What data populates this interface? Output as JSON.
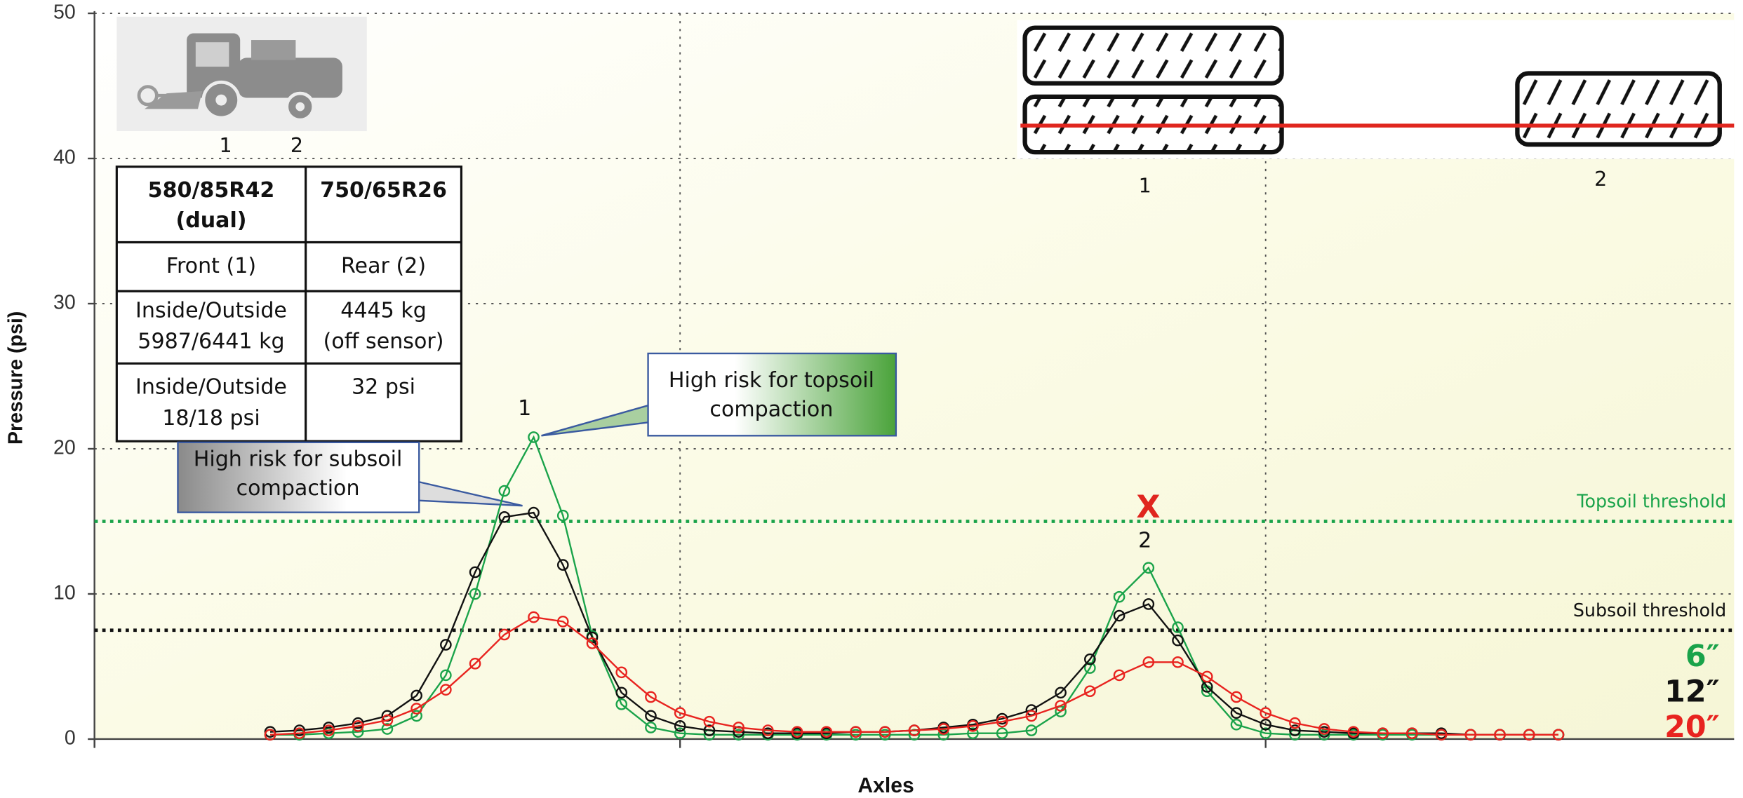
{
  "chart_data": {
    "type": "line",
    "xlabel": "Axles",
    "ylabel": "Pressure (psi)",
    "x": [
      3,
      3.5,
      4,
      4.5,
      5,
      5.5,
      6,
      6.5,
      7,
      7.5,
      8,
      8.5,
      9,
      9.5,
      10,
      10.5,
      11,
      11.5,
      12,
      12.5,
      13,
      13.5,
      14,
      14.5,
      15,
      15.5,
      16,
      16.5,
      17,
      17.5,
      18,
      18.5,
      19,
      19.5,
      20,
      20.5,
      21,
      21.5,
      22,
      22.5,
      23,
      23.5,
      24,
      24.5,
      25
    ],
    "xlim": [
      0,
      28
    ],
    "xticks": [
      0,
      10,
      20
    ],
    "ylim": [
      0,
      50
    ],
    "yticks": [
      0,
      10,
      20,
      30,
      40,
      50
    ],
    "grid": true,
    "legend": "lower right",
    "series": [
      {
        "name": "6″",
        "color": "#1aa34a",
        "values": [
          0.3,
          0.3,
          0.4,
          0.5,
          0.7,
          1.6,
          4.4,
          10.0,
          17.1,
          20.8,
          15.4,
          7.1,
          2.4,
          0.8,
          0.4,
          0.3,
          0.3,
          0.3,
          0.3,
          0.3,
          0.3,
          0.3,
          0.3,
          0.3,
          0.4,
          0.4,
          0.6,
          1.9,
          4.9,
          9.8,
          11.8,
          7.7,
          3.3,
          1.0,
          0.4,
          0.3,
          0.3,
          0.3,
          0.3,
          0.3,
          0.3,
          0.3,
          0.3,
          0.3,
          0.3
        ]
      },
      {
        "name": "12″",
        "color": "#111111",
        "values": [
          0.5,
          0.6,
          0.8,
          1.1,
          1.6,
          3.0,
          6.5,
          11.5,
          15.3,
          15.6,
          12.0,
          7.0,
          3.2,
          1.6,
          0.9,
          0.6,
          0.5,
          0.4,
          0.4,
          0.4,
          0.5,
          0.5,
          0.6,
          0.8,
          1.0,
          1.4,
          2.0,
          3.2,
          5.5,
          8.5,
          9.3,
          6.8,
          3.6,
          1.8,
          1.0,
          0.6,
          0.5,
          0.4,
          0.4,
          0.4,
          0.4,
          0.3,
          0.3,
          0.3,
          0.3
        ]
      },
      {
        "name": "20″",
        "color": "#e8231f",
        "values": [
          0.3,
          0.4,
          0.6,
          0.9,
          1.3,
          2.1,
          3.4,
          5.2,
          7.2,
          8.4,
          8.1,
          6.6,
          4.6,
          2.9,
          1.8,
          1.2,
          0.8,
          0.6,
          0.5,
          0.5,
          0.5,
          0.5,
          0.6,
          0.7,
          0.9,
          1.2,
          1.6,
          2.3,
          3.3,
          4.4,
          5.3,
          5.3,
          4.3,
          2.9,
          1.8,
          1.1,
          0.7,
          0.5,
          0.4,
          0.4,
          0.3,
          0.3,
          0.3,
          0.3,
          0.3
        ]
      }
    ],
    "thresholds": [
      {
        "label": "Topsoil threshold",
        "value": 15,
        "color": "#1aa34a"
      },
      {
        "label": "Subsoil threshold",
        "value": 7.5,
        "color": "#111111"
      }
    ],
    "annotations": {
      "peak_labels": [
        "1",
        "2"
      ],
      "marker": "X",
      "callouts": [
        [
          "High risk for topsoil",
          "compaction"
        ],
        [
          "High risk for subsoil",
          "compaction"
        ]
      ],
      "machine_axle_labels": [
        "1",
        "2"
      ],
      "tire_labels": [
        "1",
        "2"
      ]
    },
    "table": {
      "rows": [
        [
          [
            "580/85R42",
            "(dual)"
          ],
          [
            "750/65R26"
          ]
        ],
        [
          [
            "Front (1)"
          ],
          [
            "Rear (2)"
          ]
        ],
        [
          [
            "Inside/Outside",
            "5987/6441 kg"
          ],
          [
            "4445 kg",
            "(off sensor)"
          ]
        ],
        [
          [
            "Inside/Outside",
            "18/18 psi"
          ],
          [
            "32 psi"
          ]
        ]
      ]
    }
  }
}
